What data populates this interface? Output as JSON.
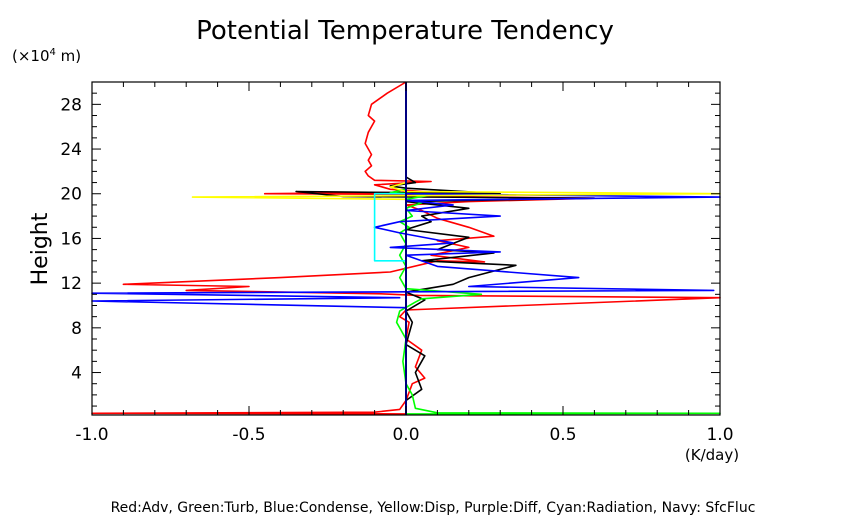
{
  "chart_data": {
    "type": "line",
    "title": "Potential Temperature Tendency",
    "ylabel": "Height",
    "yunit": "(×10",
    "yunit_exp": "4",
    "yunit_tail": " m)",
    "xunit": "(K/day)",
    "legend_text": "Red:Adv, Green:Turb, Blue:Condense, Yellow:Disp, Purple:Diff, Cyan:Radiation, Navy: SfcFluc",
    "xlim": [
      -1.0,
      1.0
    ],
    "ylim": [
      0.2,
      30.0
    ],
    "x_ticks": [
      "-1.0",
      "-0.5",
      "0.0",
      "0.5",
      "1.0"
    ],
    "x_tick_values": [
      -1.0,
      -0.5,
      0.0,
      0.5,
      1.0
    ],
    "y_ticks": [
      "4",
      "8",
      "12",
      "16",
      "20",
      "24",
      "28"
    ],
    "y_tick_values": [
      4,
      8,
      12,
      16,
      20,
      24,
      28
    ],
    "zero_line": true,
    "series": [
      {
        "key": "red",
        "color": "#ff0000",
        "points": [
          [
            0.0,
            0.3
          ],
          [
            -1.0,
            0.35
          ],
          [
            -0.1,
            0.45
          ],
          [
            -0.02,
            0.7
          ],
          [
            0.0,
            1.5
          ],
          [
            0.02,
            3.0
          ],
          [
            0.06,
            3.5
          ],
          [
            0.03,
            4.5
          ],
          [
            0.05,
            6.0
          ],
          [
            0.0,
            7.0
          ],
          [
            0.01,
            8.5
          ],
          [
            -0.02,
            9.0
          ],
          [
            0.0,
            9.6
          ],
          [
            1.0,
            10.7
          ],
          [
            0.04,
            10.9
          ],
          [
            -0.08,
            11.05
          ],
          [
            -0.7,
            11.35
          ],
          [
            -0.5,
            11.7
          ],
          [
            -0.9,
            11.9
          ],
          [
            -0.4,
            12.5
          ],
          [
            -0.05,
            13.0
          ],
          [
            0.1,
            14.0
          ],
          [
            0.25,
            13.9
          ],
          [
            0.08,
            14.5
          ],
          [
            0.2,
            15.2
          ],
          [
            0.1,
            15.8
          ],
          [
            0.28,
            16.2
          ],
          [
            0.2,
            17.0
          ],
          [
            0.1,
            17.8
          ],
          [
            0.05,
            18.5
          ],
          [
            0.0,
            19.0
          ],
          [
            0.2,
            19.3
          ],
          [
            0.6,
            19.6
          ],
          [
            -0.05,
            19.8
          ],
          [
            0.35,
            19.9
          ],
          [
            -0.45,
            20.0
          ],
          [
            0.08,
            20.15
          ],
          [
            -0.05,
            20.4
          ],
          [
            -0.1,
            20.8
          ],
          [
            0.08,
            21.1
          ],
          [
            -0.1,
            21.2
          ],
          [
            -0.12,
            21.6
          ],
          [
            -0.13,
            22.0
          ],
          [
            -0.11,
            22.5
          ],
          [
            -0.12,
            23.0
          ],
          [
            -0.11,
            23.5
          ],
          [
            -0.13,
            24.5
          ],
          [
            -0.12,
            25.5
          ],
          [
            -0.1,
            26.5
          ],
          [
            -0.12,
            27.0
          ],
          [
            -0.11,
            28.0
          ],
          [
            -0.06,
            29.0
          ],
          [
            0.0,
            30.0
          ]
        ]
      },
      {
        "key": "black",
        "color": "#000000",
        "points": [
          [
            0.0,
            0.5
          ],
          [
            0.0,
            1.5
          ],
          [
            0.05,
            2.5
          ],
          [
            0.03,
            4.0
          ],
          [
            0.06,
            5.5
          ],
          [
            0.0,
            6.5
          ],
          [
            0.02,
            8.5
          ],
          [
            0.0,
            9.5
          ],
          [
            0.06,
            10.5
          ],
          [
            0.0,
            11.2
          ],
          [
            0.15,
            11.9
          ],
          [
            0.2,
            12.5
          ],
          [
            0.35,
            13.6
          ],
          [
            0.05,
            14.0
          ],
          [
            0.28,
            14.7
          ],
          [
            0.1,
            15.0
          ],
          [
            0.2,
            16.1
          ],
          [
            0.0,
            16.8
          ],
          [
            0.08,
            17.5
          ],
          [
            0.05,
            18.0
          ],
          [
            0.2,
            18.7
          ],
          [
            0.0,
            19.3
          ],
          [
            0.6,
            19.6
          ],
          [
            -0.2,
            19.75
          ],
          [
            -0.35,
            20.2
          ],
          [
            0.3,
            20.0
          ],
          [
            0.0,
            20.5
          ],
          [
            -0.05,
            20.7
          ],
          [
            0.03,
            21.0
          ],
          [
            0.0,
            21.5
          ],
          [
            0.0,
            30.0
          ]
        ]
      },
      {
        "key": "green",
        "color": "#00ff00",
        "points": [
          [
            0.0,
            0.3
          ],
          [
            1.0,
            0.35
          ],
          [
            0.1,
            0.4
          ],
          [
            0.03,
            0.8
          ],
          [
            0.02,
            2.0
          ],
          [
            0.0,
            3.0
          ],
          [
            -0.01,
            5.0
          ],
          [
            0.0,
            7.0
          ],
          [
            -0.03,
            8.5
          ],
          [
            -0.02,
            9.5
          ],
          [
            0.03,
            10.3
          ],
          [
            0.05,
            10.6
          ],
          [
            0.24,
            11.0
          ],
          [
            0.0,
            11.5
          ],
          [
            -0.02,
            12.5
          ],
          [
            0.0,
            13.5
          ],
          [
            -0.02,
            14.5
          ],
          [
            0.0,
            15.5
          ],
          [
            -0.02,
            16.5
          ],
          [
            0.01,
            17.0
          ],
          [
            -0.02,
            17.5
          ],
          [
            0.02,
            18.0
          ],
          [
            0.0,
            18.7
          ],
          [
            0.05,
            19.2
          ],
          [
            0.0,
            19.5
          ],
          [
            0.08,
            19.9
          ],
          [
            -0.05,
            20.1
          ],
          [
            0.0,
            20.4
          ],
          [
            0.0,
            30.0
          ]
        ]
      },
      {
        "key": "blue",
        "color": "#0000ff",
        "points": [
          [
            0.0,
            0.4
          ],
          [
            0.0,
            9.8
          ],
          [
            -1.0,
            10.4
          ],
          [
            -0.02,
            10.7
          ],
          [
            -1.0,
            11.1
          ],
          [
            0.98,
            11.35
          ],
          [
            0.2,
            11.7
          ],
          [
            0.55,
            12.5
          ],
          [
            0.1,
            13.5
          ],
          [
            0.0,
            14.5
          ],
          [
            0.3,
            14.8
          ],
          [
            -0.05,
            15.2
          ],
          [
            0.15,
            15.6
          ],
          [
            -0.02,
            16.5
          ],
          [
            -0.1,
            17.0
          ],
          [
            -0.02,
            17.5
          ],
          [
            0.3,
            18.0
          ],
          [
            0.0,
            18.5
          ],
          [
            0.15,
            19.0
          ],
          [
            0.0,
            19.4
          ],
          [
            1.0,
            19.7
          ],
          [
            0.0,
            20.0
          ],
          [
            0.0,
            30.0
          ]
        ]
      },
      {
        "key": "yellow",
        "color": "#ffff00",
        "points": [
          [
            0.0,
            0.4
          ],
          [
            0.0,
            19.5
          ],
          [
            -0.68,
            19.7
          ],
          [
            1.0,
            20.0
          ],
          [
            0.0,
            20.2
          ],
          [
            -0.05,
            20.6
          ],
          [
            0.0,
            21.0
          ],
          [
            0.0,
            30.0
          ]
        ]
      },
      {
        "key": "cyan",
        "color": "#00ffff",
        "points": [
          [
            0.0,
            0.4
          ],
          [
            0.0,
            14.0
          ],
          [
            -0.1,
            14.0
          ],
          [
            -0.1,
            20.0
          ],
          [
            0.0,
            20.0
          ],
          [
            0.0,
            30.0
          ]
        ]
      },
      {
        "key": "navy",
        "color": "#000080",
        "points": [
          [
            0.0,
            0.2
          ],
          [
            0.0,
            30.0
          ]
        ]
      }
    ]
  }
}
